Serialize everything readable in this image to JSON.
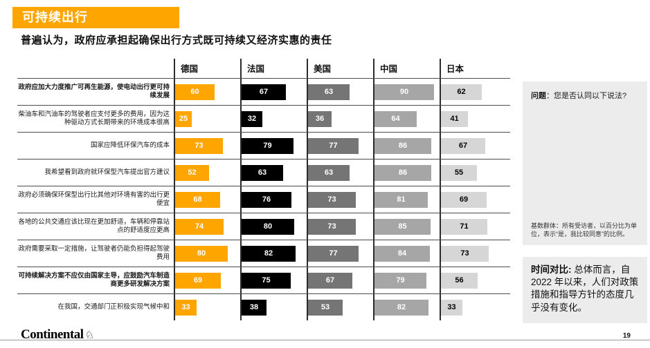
{
  "slide": {
    "tag": "可持续出行",
    "subtitle": "普遍认为，政府应承担起确保出行方式既可持续又经济实惠的责任",
    "page_number": "19",
    "logo_text": "Continental"
  },
  "sidebar": {
    "question_label": "问题",
    "question_text": "：您是否认同以下说法?",
    "base_note": "基数群体：所有受访者，以百分比为单位，表示“是，我比较同意”的比例。",
    "time_compare_label": "时间对比:",
    "time_compare_text": " 总体而言，自 2022 年以来，人们对政策措施和指导方针的态度几乎没有变化。"
  },
  "chart_data": {
    "type": "bar",
    "orientation": "horizontal",
    "title": "普遍认为，政府应承担起确保出行方式既可持续又经济实惠的责任",
    "value_unit": "% 同意",
    "xlim": [
      0,
      100
    ],
    "countries": [
      {
        "name": "德国",
        "color": "#FFA500",
        "text_color": "#ffffff"
      },
      {
        "name": "法国",
        "color": "#000000",
        "text_color": "#ffffff"
      },
      {
        "name": "美国",
        "color": "#757575",
        "text_color": "#ffffff"
      },
      {
        "name": "中国",
        "color": "#A6A6A6",
        "text_color": "#ffffff"
      },
      {
        "name": "日本",
        "color": "#D6D6D6",
        "text_color": "#000000"
      }
    ],
    "rows": [
      {
        "label": "政府应加大力度推广可再生能源，使电动出行更可持续发展",
        "bold": true,
        "values": [
          60,
          67,
          63,
          90,
          62
        ]
      },
      {
        "label": "柴油车和汽油车的驾驶者应支付更多的费用，因为这种驱动方式长期带来的环境成本很高",
        "bold": false,
        "values": [
          25,
          32,
          36,
          64,
          41
        ]
      },
      {
        "label": "国家应降低环保汽车的成本",
        "bold": false,
        "values": [
          73,
          79,
          77,
          86,
          67
        ]
      },
      {
        "label": "我希望看到政府就环保型汽车提出官方建议",
        "bold": false,
        "values": [
          52,
          63,
          63,
          86,
          55
        ]
      },
      {
        "label": "政府必须确保环保型出行比其他对环境有害的出行更便宜",
        "bold": false,
        "values": [
          68,
          76,
          73,
          81,
          69
        ]
      },
      {
        "label": "各地的公共交通应该比现在更加舒适，车辆和停靠站点的舒适度应更高",
        "bold": false,
        "values": [
          74,
          80,
          73,
          85,
          71
        ]
      },
      {
        "label": "政府需要采取一定措施，让驾驶者仍能负担得起驾驶费用",
        "bold": false,
        "values": [
          80,
          82,
          77,
          84,
          73
        ]
      },
      {
        "label": "可持续解决方案不应仅由国家主导，应鼓励汽车制造商更多研发解决方案",
        "bold": true,
        "values": [
          69,
          75,
          67,
          79,
          56
        ]
      },
      {
        "label": "在我国，交通部门正积极实现气候中和",
        "bold": false,
        "values": [
          33,
          38,
          53,
          82,
          33
        ]
      }
    ]
  }
}
